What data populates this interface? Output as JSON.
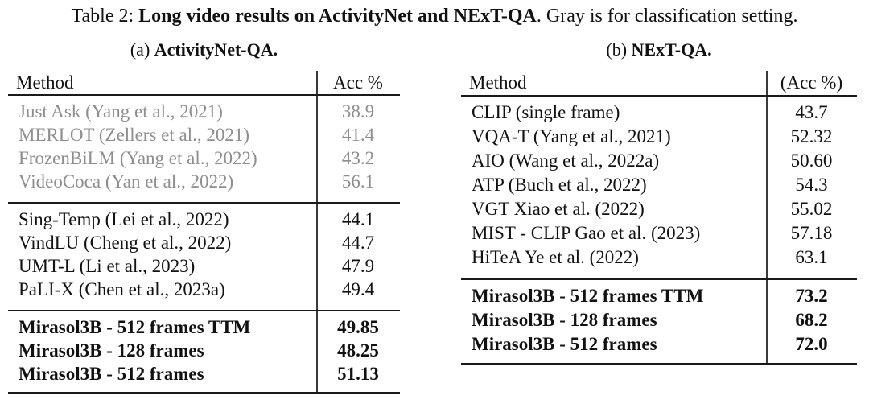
{
  "caption": {
    "prefix": "Table 2: ",
    "bold": "Long video results on ActivityNet and NExT-QA",
    "suffix": ". Gray is for classification setting."
  },
  "colors": {
    "text": "#111111",
    "gray_text": "#8e8e8e",
    "rule": "#1a1a1a"
  },
  "table_a": {
    "subcaption_prefix": "(a) ",
    "subcaption_title": "ActivityNet-QA.",
    "col_method": "Method",
    "col_acc": "Acc %",
    "gray_rows": [
      {
        "method": "Just Ask (Yang et al., 2021)",
        "acc": "38.9"
      },
      {
        "method": "MERLOT (Zellers et al., 2021)",
        "acc": "41.4"
      },
      {
        "method": "FrozenBiLM (Yang et al., 2022)",
        "acc": "43.2"
      },
      {
        "method": "VideoCoca (Yan et al., 2022)",
        "acc": "56.1"
      }
    ],
    "mid_rows": [
      {
        "method": "Sing-Temp (Lei et al., 2022)",
        "acc": "44.1"
      },
      {
        "method": "VindLU (Cheng et al., 2022)",
        "acc": "44.7"
      },
      {
        "method": "UMT-L (Li et al., 2023)",
        "acc": "47.9"
      },
      {
        "method": "PaLI-X (Chen et al., 2023a)",
        "acc": "49.4"
      }
    ],
    "bold_rows": [
      {
        "method": "Mirasol3B - 512 frames TTM",
        "acc": "49.85"
      },
      {
        "method": "Mirasol3B - 128 frames",
        "acc": "48.25"
      },
      {
        "method": "Mirasol3B - 512 frames",
        "acc": "51.13"
      }
    ]
  },
  "table_b": {
    "subcaption_prefix": "(b) ",
    "subcaption_title": "NExT-QA.",
    "col_method": "Method",
    "col_acc": "(Acc %)",
    "main_rows": [
      {
        "method": "CLIP (single frame)",
        "acc": "43.7"
      },
      {
        "method": "VQA-T (Yang et al., 2021)",
        "acc": "52.32"
      },
      {
        "method": "AIO (Wang et al., 2022a)",
        "acc": "50.60"
      },
      {
        "method": "ATP (Buch et al., 2022)",
        "acc": "54.3"
      },
      {
        "method": "VGT Xiao et al. (2022)",
        "acc": "55.02"
      },
      {
        "method": "MIST - CLIP Gao et al. (2023)",
        "acc": "57.18"
      },
      {
        "method": "HiTeA Ye et al. (2022)",
        "acc": "63.1"
      }
    ],
    "bold_rows": [
      {
        "method": "Mirasol3B - 512 frames TTM",
        "acc": "73.2"
      },
      {
        "method": "Mirasol3B - 128 frames",
        "acc": "68.2"
      },
      {
        "method": "Mirasol3B - 512 frames",
        "acc": "72.0"
      }
    ]
  }
}
